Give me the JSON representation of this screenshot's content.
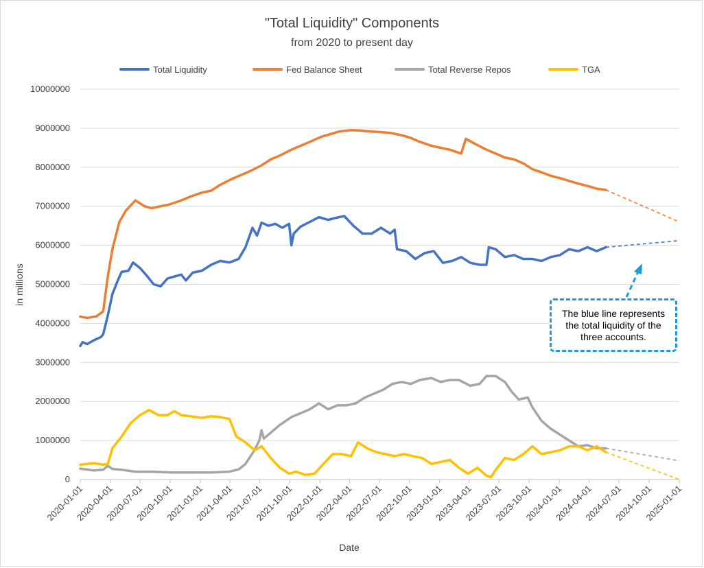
{
  "chart_data": {
    "type": "line",
    "title": "\"Total Liquidity\" Components",
    "subtitle": "from 2020 to present day",
    "xlabel": "Date",
    "ylabel": "in millions",
    "ylim": [
      0,
      10000000
    ],
    "yticks": [
      "0",
      "1000000",
      "2000000",
      "3000000",
      "4000000",
      "5000000",
      "6000000",
      "7000000",
      "8000000",
      "9000000",
      "10000000"
    ],
    "xlim": [
      "2020-01-01",
      "2025-01-01"
    ],
    "xticks": [
      "2020-01-01",
      "2020-04-01",
      "2020-07-01",
      "2020-10-01",
      "2021-01-01",
      "2021-04-01",
      "2021-07-01",
      "2021-10-01",
      "2022-01-01",
      "2022-04-01",
      "2022-07-01",
      "2022-10-01",
      "2023-01-01",
      "2023-04-01",
      "2023-07-01",
      "2023-10-01",
      "2024-01-01",
      "2024-04-01",
      "2024-07-01",
      "2024-10-01",
      "2025-01-01"
    ],
    "grid": true,
    "legend": "top",
    "series": [
      {
        "name": "Total Liquidity",
        "color": "#4472c4",
        "points": [
          [
            "2020-01-01",
            3420000
          ],
          [
            "2020-01-08",
            3520000
          ],
          [
            "2020-01-22",
            3470000
          ],
          [
            "2020-02-12",
            3570000
          ],
          [
            "2020-03-04",
            3650000
          ],
          [
            "2020-03-11",
            3720000
          ],
          [
            "2020-03-25",
            4200000
          ],
          [
            "2020-04-08",
            4750000
          ],
          [
            "2020-04-22",
            5050000
          ],
          [
            "2020-05-06",
            5320000
          ],
          [
            "2020-05-27",
            5350000
          ],
          [
            "2020-06-10",
            5560000
          ],
          [
            "2020-07-01",
            5420000
          ],
          [
            "2020-07-22",
            5220000
          ],
          [
            "2020-08-12",
            5000000
          ],
          [
            "2020-09-02",
            4950000
          ],
          [
            "2020-09-23",
            5150000
          ],
          [
            "2020-10-14",
            5200000
          ],
          [
            "2020-11-04",
            5250000
          ],
          [
            "2020-11-18",
            5100000
          ],
          [
            "2020-12-09",
            5300000
          ],
          [
            "2021-01-06",
            5350000
          ],
          [
            "2021-02-03",
            5500000
          ],
          [
            "2021-03-03",
            5600000
          ],
          [
            "2021-03-31",
            5560000
          ],
          [
            "2021-04-28",
            5650000
          ],
          [
            "2021-05-19",
            5950000
          ],
          [
            "2021-06-09",
            6450000
          ],
          [
            "2021-06-23",
            6250000
          ],
          [
            "2021-07-07",
            6580000
          ],
          [
            "2021-07-28",
            6500000
          ],
          [
            "2021-08-18",
            6550000
          ],
          [
            "2021-09-08",
            6450000
          ],
          [
            "2021-09-29",
            6550000
          ],
          [
            "2021-10-06",
            6000000
          ],
          [
            "2021-10-13",
            6300000
          ],
          [
            "2021-11-03",
            6480000
          ],
          [
            "2021-12-01",
            6600000
          ],
          [
            "2021-12-29",
            6720000
          ],
          [
            "2022-01-26",
            6650000
          ],
          [
            "2022-02-16",
            6700000
          ],
          [
            "2022-03-16",
            6750000
          ],
          [
            "2022-04-13",
            6500000
          ],
          [
            "2022-05-11",
            6300000
          ],
          [
            "2022-06-08",
            6300000
          ],
          [
            "2022-07-06",
            6450000
          ],
          [
            "2022-08-03",
            6300000
          ],
          [
            "2022-08-17",
            6400000
          ],
          [
            "2022-08-24",
            5900000
          ],
          [
            "2022-09-21",
            5850000
          ],
          [
            "2022-10-19",
            5650000
          ],
          [
            "2022-11-16",
            5800000
          ],
          [
            "2022-12-14",
            5850000
          ],
          [
            "2023-01-11",
            5550000
          ],
          [
            "2023-02-08",
            5600000
          ],
          [
            "2023-03-08",
            5700000
          ],
          [
            "2023-04-05",
            5550000
          ],
          [
            "2023-05-03",
            5500000
          ],
          [
            "2023-05-24",
            5500000
          ],
          [
            "2023-05-31",
            5950000
          ],
          [
            "2023-06-21",
            5900000
          ],
          [
            "2023-07-19",
            5700000
          ],
          [
            "2023-08-16",
            5750000
          ],
          [
            "2023-09-13",
            5650000
          ],
          [
            "2023-10-11",
            5650000
          ],
          [
            "2023-11-08",
            5600000
          ],
          [
            "2023-12-06",
            5700000
          ],
          [
            "2024-01-03",
            5750000
          ],
          [
            "2024-01-31",
            5900000
          ],
          [
            "2024-02-28",
            5850000
          ],
          [
            "2024-03-27",
            5950000
          ],
          [
            "2024-04-24",
            5850000
          ],
          [
            "2024-05-22",
            5950000
          ]
        ],
        "projection": [
          [
            "2024-05-22",
            5950000
          ],
          [
            "2025-01-01",
            6120000
          ]
        ]
      },
      {
        "name": "Fed Balance Sheet",
        "color": "#ed7d31",
        "points": [
          [
            "2020-01-01",
            4170000
          ],
          [
            "2020-01-22",
            4140000
          ],
          [
            "2020-02-19",
            4180000
          ],
          [
            "2020-03-11",
            4310000
          ],
          [
            "2020-03-25",
            5200000
          ],
          [
            "2020-04-08",
            5900000
          ],
          [
            "2020-04-29",
            6600000
          ],
          [
            "2020-05-20",
            6900000
          ],
          [
            "2020-06-17",
            7150000
          ],
          [
            "2020-07-15",
            7000000
          ],
          [
            "2020-08-05",
            6950000
          ],
          [
            "2020-09-02",
            7000000
          ],
          [
            "2020-09-30",
            7050000
          ],
          [
            "2020-11-04",
            7150000
          ],
          [
            "2020-12-02",
            7250000
          ],
          [
            "2021-01-06",
            7350000
          ],
          [
            "2021-02-03",
            7400000
          ],
          [
            "2021-03-03",
            7550000
          ],
          [
            "2021-04-07",
            7700000
          ],
          [
            "2021-05-05",
            7800000
          ],
          [
            "2021-06-02",
            7900000
          ],
          [
            "2021-07-07",
            8050000
          ],
          [
            "2021-08-04",
            8200000
          ],
          [
            "2021-09-01",
            8300000
          ],
          [
            "2021-10-06",
            8450000
          ],
          [
            "2021-11-03",
            8550000
          ],
          [
            "2021-12-01",
            8650000
          ],
          [
            "2022-01-05",
            8780000
          ],
          [
            "2022-02-02",
            8850000
          ],
          [
            "2022-03-02",
            8920000
          ],
          [
            "2022-04-06",
            8950000
          ],
          [
            "2022-05-04",
            8940000
          ],
          [
            "2022-06-01",
            8920000
          ],
          [
            "2022-07-06",
            8900000
          ],
          [
            "2022-08-03",
            8880000
          ],
          [
            "2022-09-07",
            8820000
          ],
          [
            "2022-10-05",
            8750000
          ],
          [
            "2022-11-02",
            8650000
          ],
          [
            "2022-12-07",
            8550000
          ],
          [
            "2023-01-04",
            8500000
          ],
          [
            "2023-02-01",
            8450000
          ],
          [
            "2023-03-08",
            8350000
          ],
          [
            "2023-03-22",
            8730000
          ],
          [
            "2023-04-19",
            8600000
          ],
          [
            "2023-05-24",
            8450000
          ],
          [
            "2023-06-21",
            8350000
          ],
          [
            "2023-07-19",
            8250000
          ],
          [
            "2023-08-16",
            8200000
          ],
          [
            "2023-09-13",
            8100000
          ],
          [
            "2023-10-11",
            7950000
          ],
          [
            "2023-11-08",
            7870000
          ],
          [
            "2023-12-06",
            7780000
          ],
          [
            "2024-01-03",
            7720000
          ],
          [
            "2024-01-31",
            7650000
          ],
          [
            "2024-02-28",
            7580000
          ],
          [
            "2024-03-27",
            7520000
          ],
          [
            "2024-04-24",
            7450000
          ],
          [
            "2024-05-22",
            7420000
          ]
        ],
        "projection": [
          [
            "2024-05-22",
            7420000
          ],
          [
            "2025-01-01",
            6600000
          ]
        ]
      },
      {
        "name": "Total Reverse Repos",
        "color": "#a5a5a5",
        "points": [
          [
            "2020-01-01",
            280000
          ],
          [
            "2020-02-12",
            230000
          ],
          [
            "2020-03-11",
            250000
          ],
          [
            "2020-03-25",
            350000
          ],
          [
            "2020-04-08",
            270000
          ],
          [
            "2020-05-06",
            250000
          ],
          [
            "2020-06-17",
            200000
          ],
          [
            "2020-08-05",
            200000
          ],
          [
            "2020-10-07",
            180000
          ],
          [
            "2020-12-02",
            180000
          ],
          [
            "2021-02-03",
            180000
          ],
          [
            "2021-03-31",
            200000
          ],
          [
            "2021-04-28",
            260000
          ],
          [
            "2021-05-19",
            400000
          ],
          [
            "2021-06-16",
            760000
          ],
          [
            "2021-06-30",
            1000000
          ],
          [
            "2021-07-07",
            1260000
          ],
          [
            "2021-07-14",
            1050000
          ],
          [
            "2021-08-04",
            1200000
          ],
          [
            "2021-09-01",
            1400000
          ],
          [
            "2021-10-06",
            1600000
          ],
          [
            "2021-11-03",
            1700000
          ],
          [
            "2021-12-01",
            1800000
          ],
          [
            "2021-12-29",
            1950000
          ],
          [
            "2022-01-26",
            1800000
          ],
          [
            "2022-02-23",
            1900000
          ],
          [
            "2022-03-23",
            1900000
          ],
          [
            "2022-04-20",
            1950000
          ],
          [
            "2022-05-18",
            2100000
          ],
          [
            "2022-06-15",
            2200000
          ],
          [
            "2022-07-13",
            2300000
          ],
          [
            "2022-08-10",
            2450000
          ],
          [
            "2022-09-07",
            2500000
          ],
          [
            "2022-10-05",
            2450000
          ],
          [
            "2022-11-02",
            2550000
          ],
          [
            "2022-12-07",
            2600000
          ],
          [
            "2023-01-04",
            2500000
          ],
          [
            "2023-02-01",
            2550000
          ],
          [
            "2023-03-01",
            2550000
          ],
          [
            "2023-04-05",
            2400000
          ],
          [
            "2023-05-03",
            2450000
          ],
          [
            "2023-05-24",
            2650000
          ],
          [
            "2023-06-21",
            2650000
          ],
          [
            "2023-07-19",
            2500000
          ],
          [
            "2023-08-09",
            2250000
          ],
          [
            "2023-08-30",
            2050000
          ],
          [
            "2023-09-27",
            2100000
          ],
          [
            "2023-10-11",
            1850000
          ],
          [
            "2023-11-08",
            1500000
          ],
          [
            "2023-12-06",
            1300000
          ],
          [
            "2024-01-03",
            1150000
          ],
          [
            "2024-01-31",
            1000000
          ],
          [
            "2024-02-28",
            850000
          ],
          [
            "2024-03-27",
            880000
          ],
          [
            "2024-04-24",
            800000
          ],
          [
            "2024-05-22",
            800000
          ]
        ],
        "projection": [
          [
            "2024-05-22",
            800000
          ],
          [
            "2024-08-01",
            700000
          ],
          [
            "2025-01-01",
            480000
          ]
        ]
      },
      {
        "name": "TGA",
        "color": "#ffc000",
        "points": [
          [
            "2020-01-01",
            380000
          ],
          [
            "2020-02-12",
            420000
          ],
          [
            "2020-03-11",
            380000
          ],
          [
            "2020-03-25",
            400000
          ],
          [
            "2020-04-08",
            800000
          ],
          [
            "2020-05-06",
            1100000
          ],
          [
            "2020-06-03",
            1450000
          ],
          [
            "2020-07-01",
            1650000
          ],
          [
            "2020-07-29",
            1780000
          ],
          [
            "2020-08-26",
            1650000
          ],
          [
            "2020-09-23",
            1650000
          ],
          [
            "2020-10-14",
            1750000
          ],
          [
            "2020-11-04",
            1650000
          ],
          [
            "2020-12-02",
            1620000
          ],
          [
            "2021-01-06",
            1580000
          ],
          [
            "2021-02-03",
            1620000
          ],
          [
            "2021-03-03",
            1600000
          ],
          [
            "2021-03-31",
            1550000
          ],
          [
            "2021-04-21",
            1100000
          ],
          [
            "2021-05-19",
            950000
          ],
          [
            "2021-06-16",
            750000
          ],
          [
            "2021-07-07",
            850000
          ],
          [
            "2021-08-04",
            550000
          ],
          [
            "2021-09-01",
            300000
          ],
          [
            "2021-09-29",
            150000
          ],
          [
            "2021-10-20",
            200000
          ],
          [
            "2021-11-17",
            120000
          ],
          [
            "2021-12-15",
            150000
          ],
          [
            "2022-01-12",
            400000
          ],
          [
            "2022-02-09",
            650000
          ],
          [
            "2022-03-09",
            650000
          ],
          [
            "2022-04-06",
            600000
          ],
          [
            "2022-04-27",
            950000
          ],
          [
            "2022-05-25",
            800000
          ],
          [
            "2022-06-22",
            700000
          ],
          [
            "2022-07-20",
            650000
          ],
          [
            "2022-08-17",
            600000
          ],
          [
            "2022-09-14",
            650000
          ],
          [
            "2022-10-12",
            600000
          ],
          [
            "2022-11-09",
            550000
          ],
          [
            "2022-12-07",
            400000
          ],
          [
            "2023-01-04",
            450000
          ],
          [
            "2023-02-01",
            500000
          ],
          [
            "2023-03-01",
            300000
          ],
          [
            "2023-03-29",
            150000
          ],
          [
            "2023-04-26",
            300000
          ],
          [
            "2023-05-24",
            100000
          ],
          [
            "2023-06-07",
            60000
          ],
          [
            "2023-06-21",
            250000
          ],
          [
            "2023-07-19",
            550000
          ],
          [
            "2023-08-16",
            500000
          ],
          [
            "2023-09-13",
            650000
          ],
          [
            "2023-10-11",
            850000
          ],
          [
            "2023-11-08",
            650000
          ],
          [
            "2023-12-06",
            700000
          ],
          [
            "2024-01-03",
            750000
          ],
          [
            "2024-01-31",
            850000
          ],
          [
            "2024-02-28",
            850000
          ],
          [
            "2024-03-27",
            750000
          ],
          [
            "2024-04-24",
            850000
          ],
          [
            "2024-05-22",
            700000
          ]
        ],
        "projection": [
          [
            "2024-05-22",
            700000
          ],
          [
            "2025-01-01",
            0
          ]
        ]
      }
    ],
    "annotation": {
      "text": "The blue line represents the total liquidity of the three accounts.",
      "border_color": "#1f9ae0"
    }
  }
}
